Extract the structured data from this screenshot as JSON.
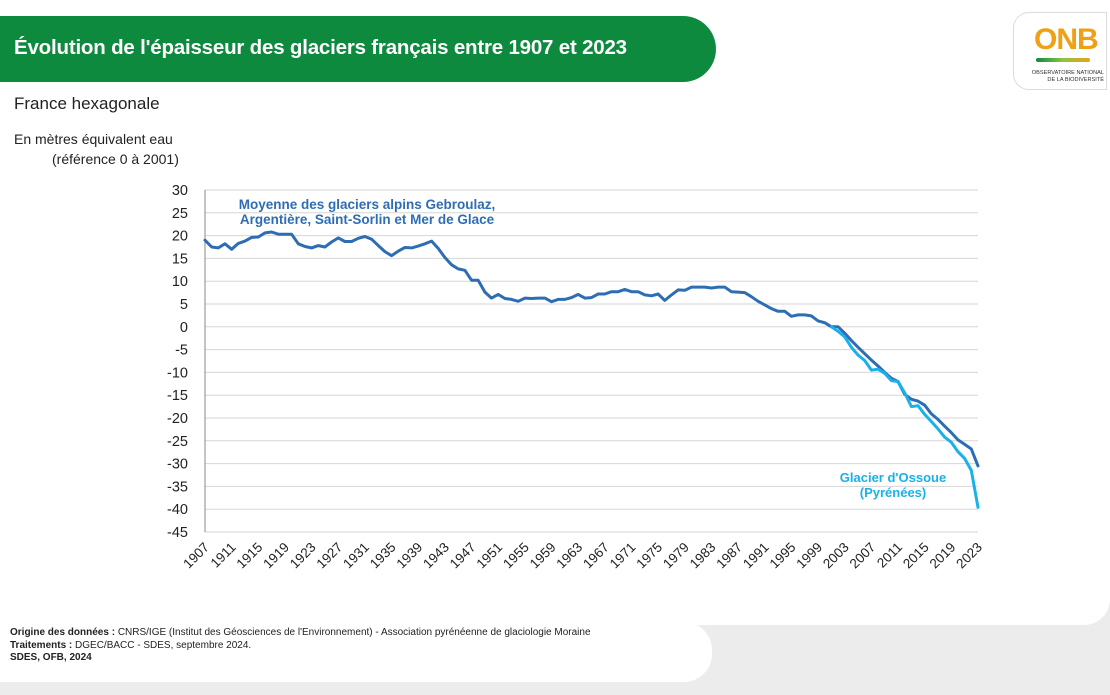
{
  "header": {
    "title": "Évolution de l'épaisseur des glaciers français entre 1907 et 2023",
    "subtitle": "France hexagonale",
    "unit_line1": "En mètres équivalent eau",
    "unit_line2": "(référence 0 à 2001)"
  },
  "logo": {
    "word": "ONB",
    "sub_line1": "OBSERVATOIRE NATIONAL",
    "sub_line2": "DE LA BIODIVERSITÉ"
  },
  "colors": {
    "brand_green": "#0e8a3e",
    "series_alps": "#2e6db4",
    "series_ossoue": "#1ab0ea",
    "logo_orange": "#f0a014"
  },
  "footer": {
    "source_label": "Origine des données :",
    "source_text": "CNRS/IGE (Institut des Géosciences de l'Environnement) - Association pyrénéenne de glaciologie Moraine",
    "processing_label": "Traitements :",
    "processing_text": "DGEC/BACC - SDES, septembre 2024.",
    "credit": "SDES, OFB, 2024"
  },
  "chart_data": {
    "type": "line",
    "ylim": [
      -45,
      30
    ],
    "y_ticks": [
      30,
      25,
      20,
      15,
      10,
      5,
      0,
      -5,
      -10,
      -15,
      -20,
      -25,
      -30,
      -35,
      -40,
      -45
    ],
    "x_range": [
      1907,
      2023
    ],
    "x_ticks": [
      "1907",
      "1911",
      "1915",
      "1919",
      "1923",
      "1927",
      "1931",
      "1935",
      "1939",
      "1943",
      "1947",
      "1951",
      "1955",
      "1959",
      "1963",
      "1967",
      "1971",
      "1975",
      "1979",
      "1983",
      "1987",
      "1991",
      "1995",
      "1999",
      "2003",
      "2007",
      "2011",
      "2015",
      "2019",
      "2023"
    ],
    "grid": true,
    "legend": "none",
    "series": [
      {
        "label_line1": "Moyenne des glaciers alpins Gebroulaz,",
        "label_line2": "Argentière, Saint-Sorlin et Mer de Glace",
        "color": "#2e6db4",
        "x": [
          1907,
          1908,
          1909,
          1910,
          1911,
          1912,
          1913,
          1914,
          1915,
          1916,
          1917,
          1918,
          1919,
          1920,
          1921,
          1922,
          1923,
          1924,
          1925,
          1926,
          1927,
          1928,
          1929,
          1930,
          1931,
          1932,
          1933,
          1934,
          1935,
          1936,
          1937,
          1938,
          1939,
          1940,
          1941,
          1942,
          1943,
          1944,
          1945,
          1946,
          1947,
          1948,
          1949,
          1950,
          1951,
          1952,
          1953,
          1954,
          1955,
          1956,
          1957,
          1958,
          1959,
          1960,
          1961,
          1962,
          1963,
          1964,
          1965,
          1966,
          1967,
          1968,
          1969,
          1970,
          1971,
          1972,
          1973,
          1974,
          1975,
          1976,
          1977,
          1978,
          1979,
          1980,
          1981,
          1982,
          1983,
          1984,
          1985,
          1986,
          1987,
          1988,
          1989,
          1990,
          1991,
          1992,
          1993,
          1994,
          1995,
          1996,
          1997,
          1998,
          1999,
          2000,
          2001,
          2002,
          2003,
          2004,
          2005,
          2006,
          2007,
          2008,
          2009,
          2010,
          2011,
          2012,
          2013,
          2014,
          2015,
          2016,
          2017,
          2018,
          2019,
          2020,
          2021,
          2022,
          2023
        ],
        "y": [
          19,
          17.5,
          17.3,
          18.2,
          17,
          18.3,
          18.8,
          19.6,
          19.7,
          20.6,
          20.8,
          20.3,
          20.3,
          20.3,
          18.2,
          17.6,
          17.3,
          17.8,
          17.5,
          18.6,
          19.5,
          18.7,
          18.7,
          19.4,
          19.8,
          19.2,
          17.8,
          16.5,
          15.6,
          16.6,
          17.4,
          17.3,
          17.7,
          18.2,
          18.8,
          17.2,
          15.2,
          13.6,
          12.7,
          12.4,
          10.2,
          10.2,
          7.6,
          6.3,
          7.1,
          6.2,
          6,
          5.6,
          6.3,
          6.2,
          6.3,
          6.3,
          5.5,
          6,
          6,
          6.4,
          7.1,
          6.3,
          6.4,
          7.2,
          7.2,
          7.7,
          7.7,
          8.2,
          7.7,
          7.7,
          7,
          6.8,
          7.2,
          5.8,
          7,
          8.1,
          8,
          8.7,
          8.7,
          8.7,
          8.5,
          8.7,
          8.7,
          7.7,
          7.6,
          7.5,
          6.6,
          5.6,
          4.8,
          4,
          3.4,
          3.4,
          2.3,
          2.6,
          2.6,
          2.4,
          1.3,
          0.9,
          0,
          0,
          -1.4,
          -3,
          -4.5,
          -5.9,
          -7.3,
          -8.6,
          -10,
          -11.3,
          -12,
          -14.8,
          -15.9,
          -16.3,
          -17.2,
          -19.1,
          -20.3,
          -21.8,
          -23.2,
          -24.8,
          -25.8,
          -26.8,
          -30.5
        ]
      },
      {
        "label_line1": "Glacier d'Ossoue",
        "label_line2": "(Pyrénées)",
        "color": "#1ab0ea",
        "x": [
          2001,
          2002,
          2003,
          2004,
          2005,
          2006,
          2007,
          2008,
          2009,
          2010,
          2011,
          2012,
          2013,
          2014,
          2015,
          2016,
          2017,
          2018,
          2019,
          2020,
          2021,
          2022,
          2023
        ],
        "y": [
          0,
          -1,
          -2.2,
          -4.5,
          -6.2,
          -7.4,
          -9.5,
          -9.3,
          -10.2,
          -11.8,
          -12,
          -14.5,
          -17.5,
          -17.3,
          -19.2,
          -20.8,
          -22.4,
          -24.2,
          -25.3,
          -27.4,
          -28.9,
          -31.5,
          -39.6
        ]
      }
    ]
  }
}
